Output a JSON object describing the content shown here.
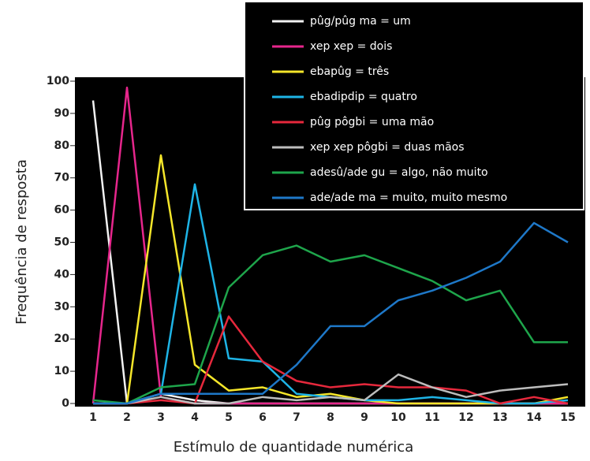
{
  "chart_data": {
    "type": "line",
    "x_label": "Estímulo de quantidade numérica",
    "y_label": "Frequência de resposta",
    "categories": [
      "1",
      "2",
      "3",
      "4",
      "5",
      "6",
      "7",
      "8",
      "9",
      "10",
      "11",
      "12",
      "13",
      "14",
      "15"
    ],
    "ylim": [
      0,
      100
    ],
    "yticks": [
      0,
      10,
      20,
      30,
      40,
      50,
      60,
      70,
      80,
      90,
      100
    ],
    "legend": "top-right",
    "series": [
      {
        "name": "pûg/pûg ma = um",
        "color": "#f2f2f2",
        "values": [
          94,
          0,
          3,
          1,
          0,
          0,
          0,
          0,
          0,
          0,
          0,
          0,
          0,
          0,
          0
        ]
      },
      {
        "name": "xep xep = dois",
        "color": "#e6268c",
        "values": [
          0,
          98,
          2,
          0,
          0,
          0,
          0,
          0,
          0,
          0,
          0,
          0,
          0,
          0,
          0
        ]
      },
      {
        "name": "ebapûg = três",
        "color": "#f5e62a",
        "values": [
          0,
          0,
          77,
          12,
          4,
          5,
          2,
          3,
          1,
          0,
          0,
          0,
          0,
          0,
          2
        ]
      },
      {
        "name": "ebadipdip = quatro",
        "color": "#1eb4e6",
        "values": [
          0,
          0,
          3,
          68,
          14,
          13,
          3,
          2,
          1,
          1,
          2,
          1,
          0,
          0,
          1
        ]
      },
      {
        "name": "pûg pôgbi = uma mão",
        "color": "#e6283c",
        "values": [
          0,
          0,
          1,
          0,
          27,
          13,
          7,
          5,
          6,
          5,
          5,
          4,
          0,
          2,
          0
        ]
      },
      {
        "name": "xep xep pôgbi = duas mãos",
        "color": "#bdbdbd",
        "values": [
          0,
          0,
          2,
          0,
          0,
          2,
          1,
          2,
          1,
          9,
          5,
          2,
          4,
          5,
          6
        ]
      },
      {
        "name": "adesû/ade gu = algo, não muito",
        "color": "#1ea54b",
        "values": [
          1,
          0,
          5,
          6,
          36,
          46,
          49,
          44,
          46,
          42,
          38,
          32,
          35,
          19,
          19
        ]
      },
      {
        "name": "ade/ade ma =  muito, muito mesmo",
        "color": "#1e78c8",
        "values": [
          0,
          0,
          3,
          3,
          3,
          3,
          12,
          24,
          24,
          32,
          35,
          39,
          44,
          56,
          50
        ]
      }
    ]
  }
}
